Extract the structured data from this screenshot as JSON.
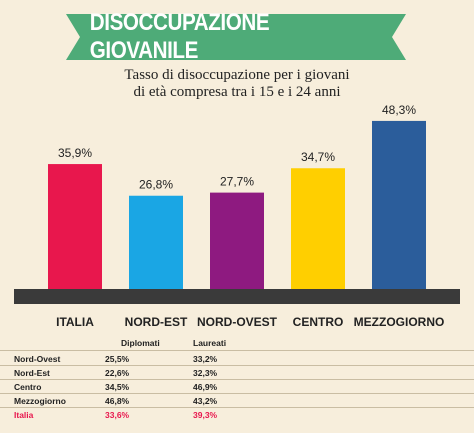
{
  "header": {
    "title": "DISOCCUPAZIONE GIOVANILE",
    "subtitle_line1": "Tasso di disoccupazione per i giovani",
    "subtitle_line2": "di età compresa tra i 15 e i 24 anni"
  },
  "colors": {
    "background": "#f7eedc",
    "banner": "#4eab78",
    "baseline": "#3a3a3a"
  },
  "chart_data": {
    "type": "bar",
    "categories": [
      "ITALIA",
      "NORD-EST",
      "NORD-OVEST",
      "CENTRO",
      "MEZZOGIORNO"
    ],
    "values": [
      35.9,
      26.8,
      27.7,
      34.7,
      48.3
    ],
    "value_labels": [
      "35,9%",
      "26,8%",
      "27,7%",
      "34,7%",
      "48,3%"
    ],
    "colors": [
      "#e8174d",
      "#1aa6e4",
      "#8e1a80",
      "#ffcf00",
      "#2b5d9b"
    ],
    "ylim": [
      0,
      50
    ],
    "grid": false
  },
  "table": {
    "headers": [
      "Diplomati",
      "Laureati"
    ],
    "rows": [
      {
        "label": "Nord-Ovest",
        "diplomati": "25,5%",
        "laureati": "33,2%"
      },
      {
        "label": "Nord-Est",
        "diplomati": "22,6%",
        "laureati": "32,3%"
      },
      {
        "label": "Centro",
        "diplomati": "34,5%",
        "laureati": "46,9%"
      },
      {
        "label": "Mezzogiorno",
        "diplomati": "46,8%",
        "laureati": "43,2%"
      },
      {
        "label": "Italia",
        "diplomati": "33,6%",
        "laureati": "39,3%"
      }
    ]
  }
}
